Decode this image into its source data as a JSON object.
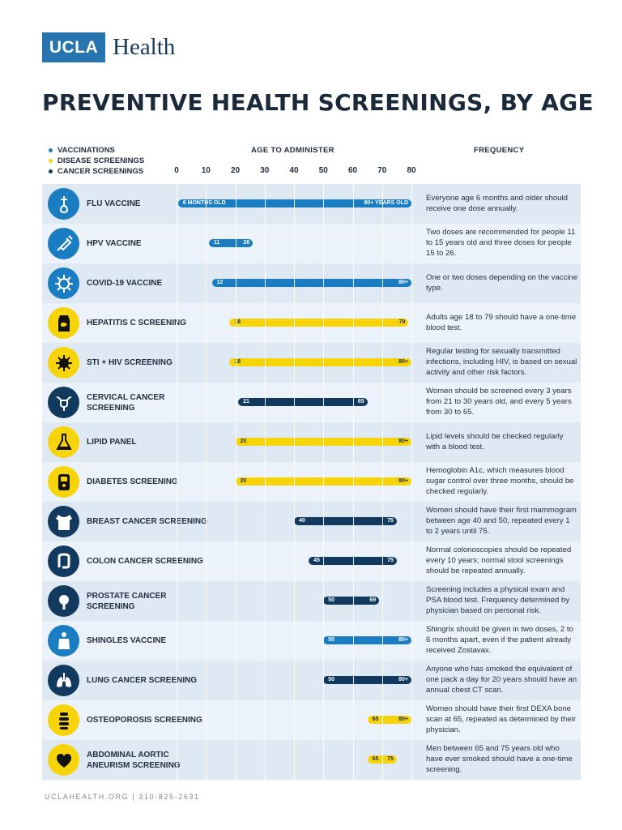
{
  "logo": {
    "box_text": "UCLA",
    "word": "Health"
  },
  "title": "PREVENTIVE HEALTH SCREENINGS, BY AGE",
  "legend": [
    {
      "label": "VACCINATIONS",
      "color": "#1a7cc1"
    },
    {
      "label": "DISEASE SCREENINGS",
      "color": "#f7d40a"
    },
    {
      "label": "CANCER SCREENINGS",
      "color": "#123a5e"
    }
  ],
  "headings": {
    "age": "AGE TO ADMINISTER",
    "frequency": "FREQUENCY"
  },
  "colors": {
    "vaccination": "#1a7cc1",
    "disease": "#f7d40a",
    "cancer": "#123a5e",
    "row_even": "#dfe9f4",
    "row_odd": "#ecf2f9"
  },
  "footer": "UCLAHEALTH.ORG  |  310-825-2631",
  "chart_data": {
    "type": "bar",
    "orientation": "horizontal-range",
    "title": "PREVENTIVE HEALTH SCREENINGS, BY AGE",
    "xlabel": "AGE TO ADMINISTER",
    "xlim": [
      0,
      80
    ],
    "xticks": [
      0,
      10,
      20,
      30,
      40,
      50,
      60,
      70,
      80
    ],
    "rows": [
      {
        "name": "FLU VACCINE",
        "category": "vaccination",
        "icon": "flu-icon",
        "start": 0.5,
        "end": 80,
        "start_label": "6 MONTHS OLD",
        "end_label": "80+ YEARS OLD",
        "frequency": "Everyone age 6 months and older should receive one dose annually."
      },
      {
        "name": "HPV VACCINE",
        "category": "vaccination",
        "icon": "syringe-icon",
        "start": 11,
        "end": 26,
        "start_label": "11",
        "end_label": "26",
        "frequency": "Two doses are recommended for people 11 to 15 years old and three doses for people 15 to 26."
      },
      {
        "name": "COVID-19 VACCINE",
        "category": "vaccination",
        "icon": "virus-icon",
        "start": 12,
        "end": 80,
        "start_label": "12",
        "end_label": "80+",
        "frequency": "One or two doses depending on the vaccine type."
      },
      {
        "name": "HEPATITIS C SCREENING",
        "category": "disease",
        "icon": "liver-icon",
        "start": 18,
        "end": 79,
        "start_label": "18",
        "end_label": "79",
        "frequency": "Adults age 18 to 79 should have a one-time blood test."
      },
      {
        "name": "STI + HIV SCREENING",
        "category": "disease",
        "icon": "germ-icon",
        "start": 18,
        "end": 80,
        "start_label": "18",
        "end_label": "80+",
        "frequency": "Regular testing for sexually transmitted infections, including HIV, is based on sexual activity and other risk factors."
      },
      {
        "name": "CERVICAL CANCER SCREENING",
        "category": "cancer",
        "icon": "uterus-icon",
        "start": 21,
        "end": 65,
        "start_label": "21",
        "end_label": "65",
        "frequency": "Women should be screened every 3 years from 21 to 30 years old, and every 5 years from 30 to 65."
      },
      {
        "name": "LIPID PANEL",
        "category": "disease",
        "icon": "flask-icon",
        "start": 20,
        "end": 80,
        "start_label": "20",
        "end_label": "80+",
        "frequency": "Lipid levels should be checked regularly with a blood test."
      },
      {
        "name": "DIABETES SCREENING",
        "category": "disease",
        "icon": "glucometer-icon",
        "start": 20,
        "end": 80,
        "start_label": "20",
        "end_label": "80+",
        "frequency": "Hemoglobin A1c, which measures blood sugar control over three months, should be checked regularly."
      },
      {
        "name": "BREAST CANCER SCREENING",
        "category": "cancer",
        "icon": "torso-icon",
        "start": 40,
        "end": 75,
        "start_label": "40",
        "end_label": "75",
        "frequency": "Women should have their first mammogram between age 40 and 50, repeated every 1 to 2 years until 75."
      },
      {
        "name": "COLON CANCER SCREENING",
        "category": "cancer",
        "icon": "colon-icon",
        "start": 45,
        "end": 75,
        "start_label": "45",
        "end_label": "75",
        "frequency": "Normal colonoscopies should be repeated every 10 years; normal stool screenings should be repeated annually."
      },
      {
        "name": "PROSTATE CANCER SCREENING",
        "category": "cancer",
        "icon": "prostate-icon",
        "start": 50,
        "end": 69,
        "start_label": "50",
        "end_label": "69",
        "frequency": "Screening includes a physical exam and PSA blood test. Frequency determined by physician based on personal risk."
      },
      {
        "name": "SHINGLES VACCINE",
        "category": "vaccination",
        "icon": "body-icon",
        "start": 50,
        "end": 80,
        "start_label": "50",
        "end_label": "80+",
        "frequency": "Shingrix should be given in two doses, 2 to 6 months apart, even if the patient already received Zostavax."
      },
      {
        "name": "LUNG CANCER SCREENING",
        "category": "cancer",
        "icon": "lungs-icon",
        "start": 50,
        "end": 80,
        "start_label": "50",
        "end_label": "80+",
        "frequency": "Anyone who has smoked the equivalent of one pack a day for 20 years should have an annual chest CT scan."
      },
      {
        "name": "OSTEOPOROSIS SCREENING",
        "category": "disease",
        "icon": "spine-icon",
        "start": 65,
        "end": 80,
        "start_label": "65",
        "end_label": "80+",
        "frequency": "Women should have their first DEXA bone scan at 65, repeated as determined by their physician."
      },
      {
        "name": "ABDOMINAL AORTIC ANEURISM SCREENING",
        "category": "disease",
        "icon": "heart-icon",
        "start": 65,
        "end": 75,
        "start_label": "65",
        "end_label": "75",
        "frequency": "Men between 65 and 75 years old who have ever smoked should have a one-time screening."
      }
    ]
  }
}
